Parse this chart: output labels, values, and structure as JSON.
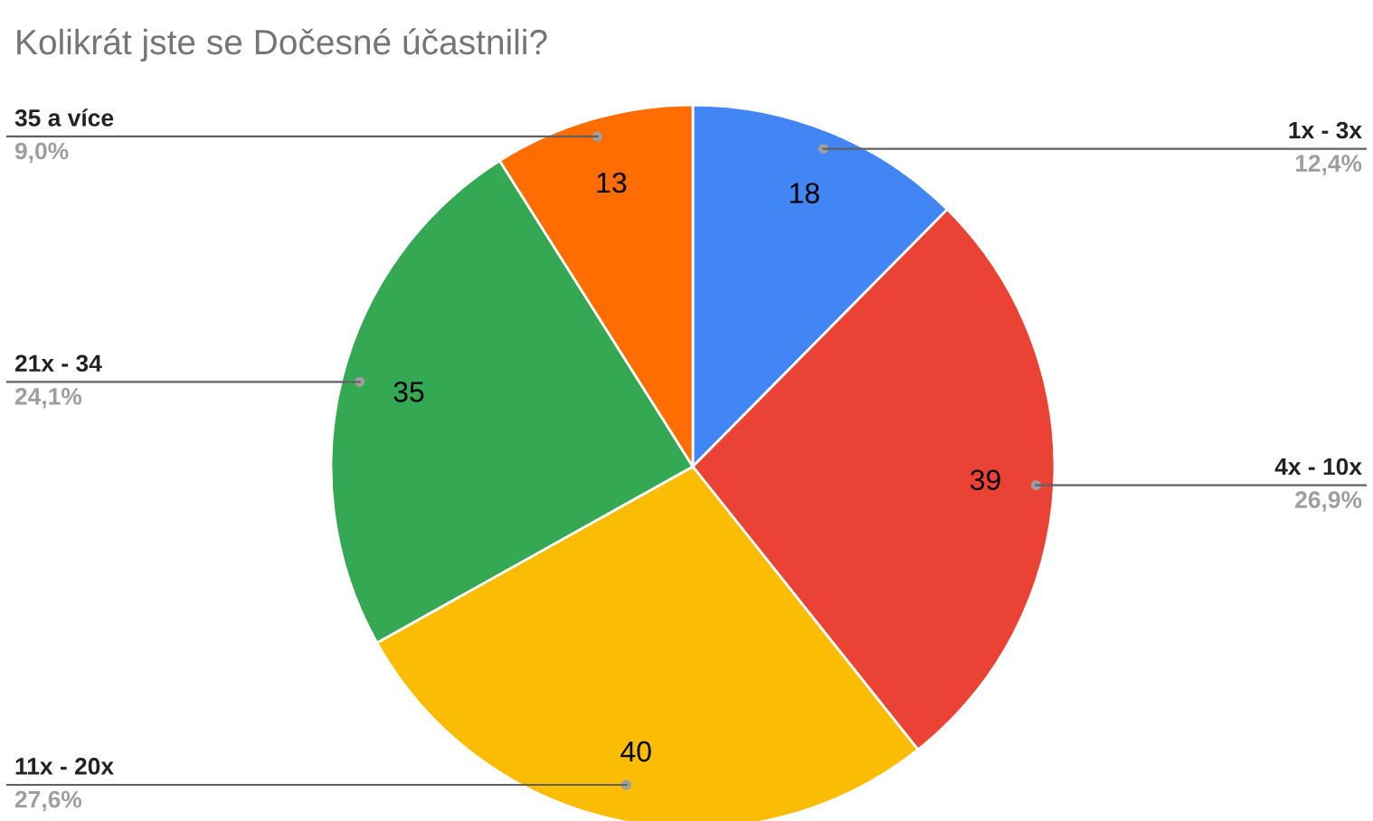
{
  "chart_data": {
    "type": "pie",
    "title": "Kolikrát jste se Dočesné účastnili?",
    "categories": [
      "1x - 3x",
      "4x - 10x",
      "11x - 20x",
      "21x - 34",
      "35 a více"
    ],
    "values": [
      18,
      39,
      40,
      35,
      13
    ],
    "colors": [
      "#4285f4",
      "#ea4335",
      "#fbbc04",
      "#34a853",
      "#ff6d01"
    ],
    "data_labels": true,
    "annotations": [
      "12,4%",
      "26,9%",
      "27,6%",
      "24,1%",
      "9,0%"
    ]
  }
}
